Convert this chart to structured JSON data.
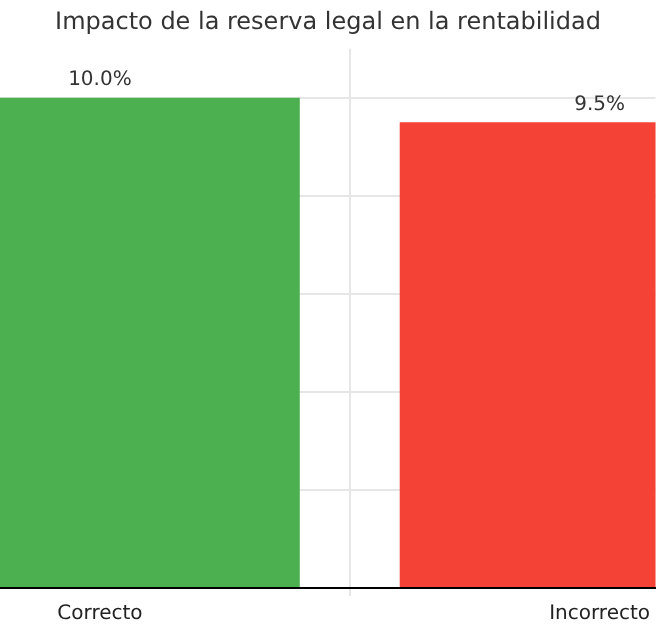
{
  "chart_data": {
    "type": "bar",
    "title": "Impacto de la reserva legal en la rentabilidad",
    "categories": [
      "Correcto",
      "Incorrecto"
    ],
    "values": [
      10.0,
      9.5
    ],
    "colors": [
      "#4caf50",
      "#f44336"
    ],
    "value_labels": [
      "10.0%",
      "9.5%"
    ],
    "ylim": [
      0,
      11
    ],
    "yticks": [
      {
        "value": 0,
        "label": null
      },
      {
        "value": 2,
        "label": null
      },
      {
        "value": 4,
        "label": null
      },
      {
        "value": 6,
        "label": null
      },
      {
        "value": 8,
        "label": null
      },
      {
        "value": 10,
        "label": null
      }
    ],
    "tick_labels": "x",
    "grid": true,
    "legend": false
  }
}
